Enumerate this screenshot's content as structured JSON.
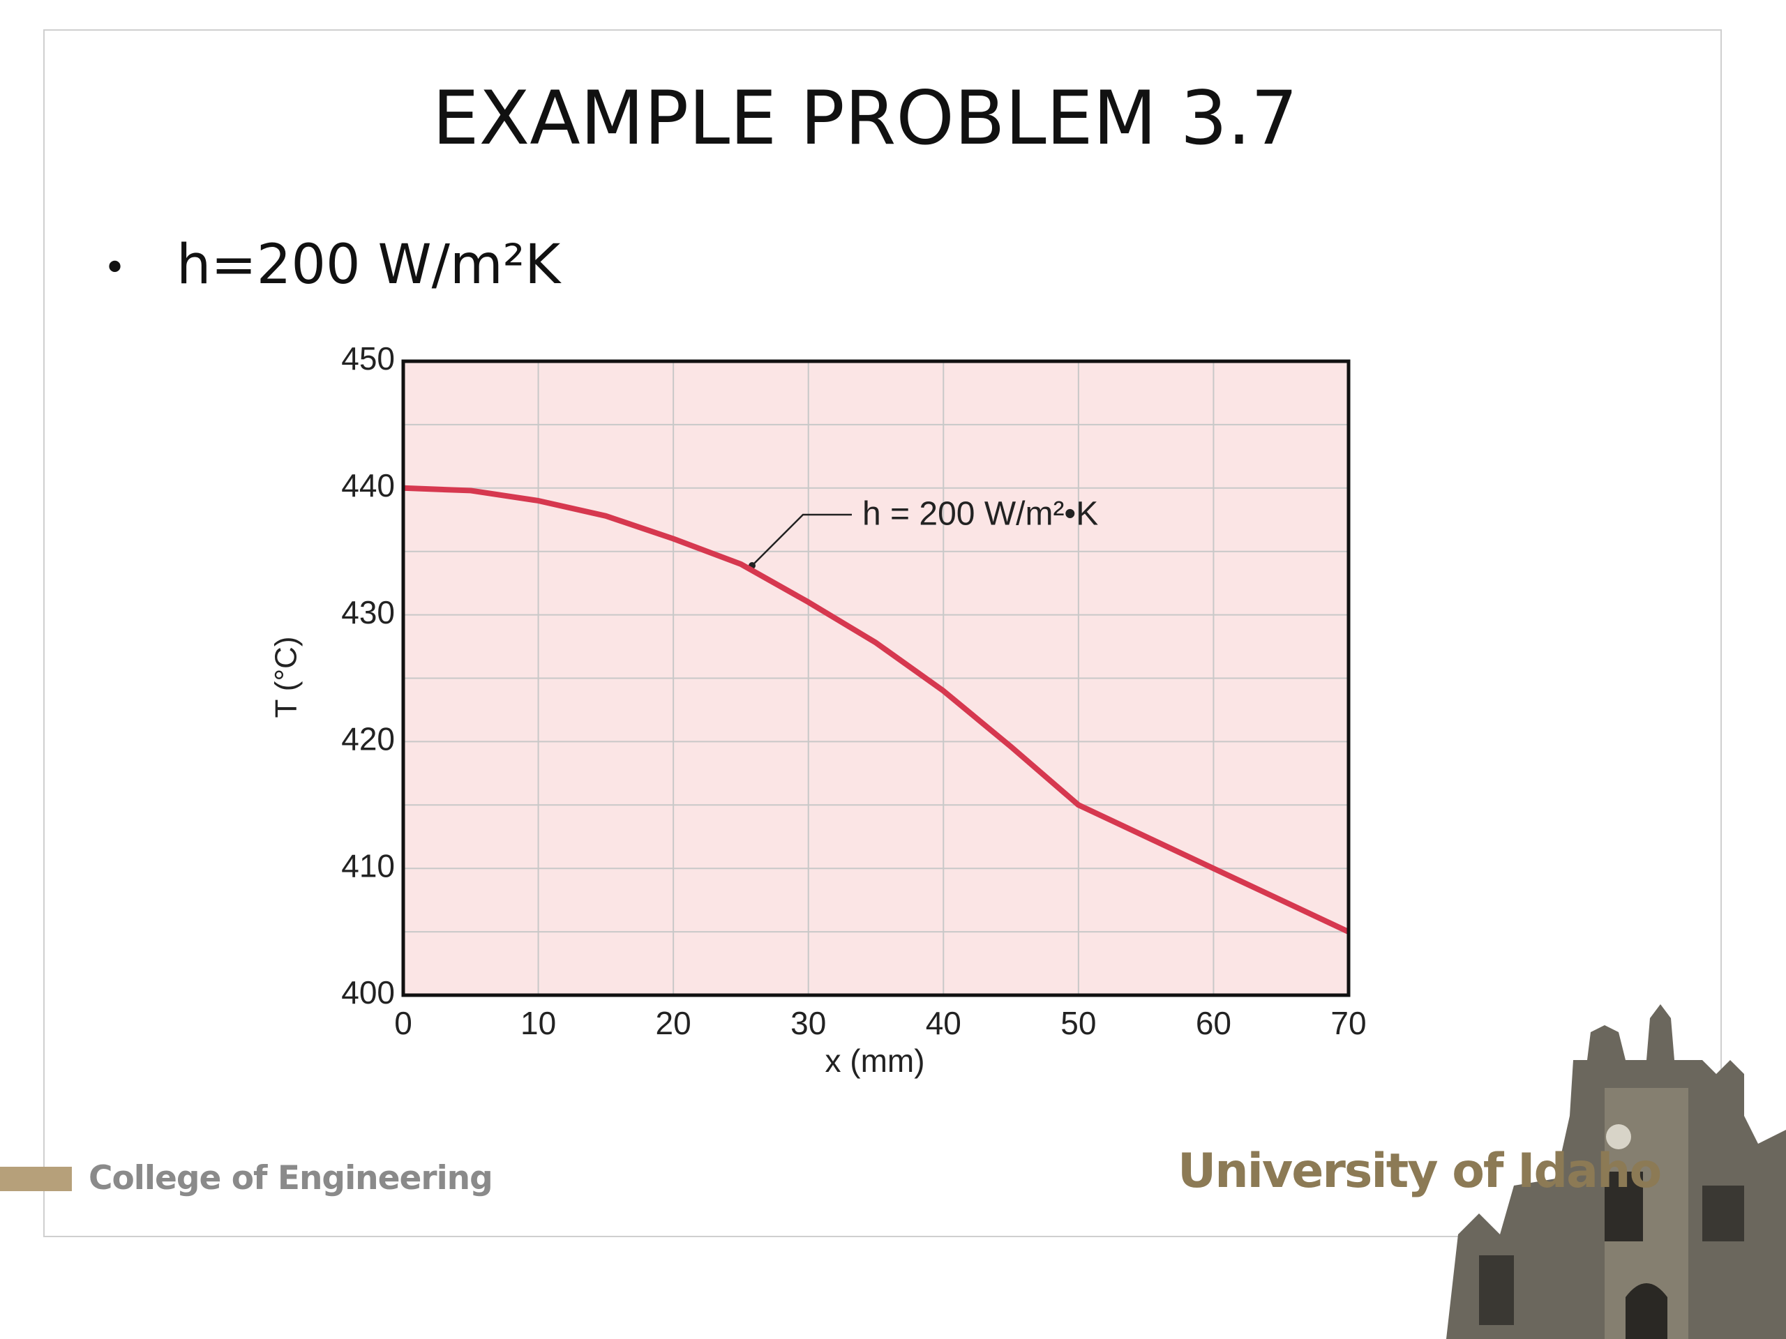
{
  "slide": {
    "title": "EXAMPLE PROBLEM 3.7",
    "bullet": "h=200 W/m²K"
  },
  "footer": {
    "college": "College of Engineering",
    "university": "University of Idaho"
  },
  "chart_data": {
    "type": "line",
    "x": [
      0,
      5,
      10,
      15,
      20,
      25,
      30,
      35,
      40,
      45,
      50,
      55,
      60,
      65,
      70
    ],
    "series": [
      {
        "name": "h = 200 W/m²•K",
        "color": "#d6384f",
        "values": [
          440,
          439.8,
          439,
          437.8,
          436,
          434,
          431,
          427.8,
          424,
          419.6,
          415,
          412.5,
          410,
          407.5,
          405
        ]
      }
    ],
    "xlabel": "x (mm)",
    "ylabel": "T (°C)",
    "xlim": [
      0,
      70
    ],
    "ylim": [
      400,
      450
    ],
    "xticks": [
      0,
      10,
      20,
      30,
      40,
      50,
      60,
      70
    ],
    "yticks": [
      400,
      410,
      420,
      430,
      440,
      450
    ],
    "grid": true,
    "background": "#fbe5e5"
  }
}
